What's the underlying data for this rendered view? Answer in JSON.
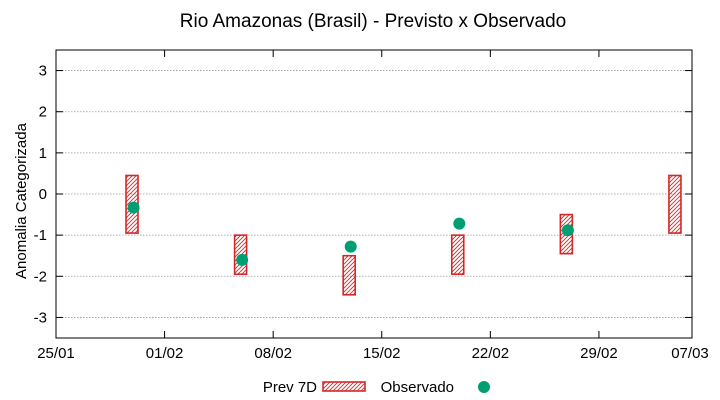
{
  "chart_data": {
    "type": "range-bar-with-points",
    "title": "Rio Amazonas (Brasil) - Previsto x Observado",
    "xlabel": "",
    "ylabel": "Anomalia Categorizada",
    "xlim": [
      0,
      41
    ],
    "x_ticks": [
      {
        "x": 0,
        "label": "25/01"
      },
      {
        "x": 7,
        "label": "01/02"
      },
      {
        "x": 14,
        "label": "08/02"
      },
      {
        "x": 21,
        "label": "15/02"
      },
      {
        "x": 28,
        "label": "22/02"
      },
      {
        "x": 35,
        "label": "29/02"
      },
      {
        "x": 42,
        "label": "07/03"
      }
    ],
    "ylim": [
      -3.5,
      3.5
    ],
    "y_ticks": [
      -3,
      -2,
      -1,
      0,
      1,
      2,
      3
    ],
    "grid": true,
    "legend_position": "bottom",
    "series": [
      {
        "name": "Prev 7D",
        "kind": "range",
        "color": "#d62728",
        "points": [
          {
            "x": 4.9,
            "low": -0.95,
            "high": 0.45
          },
          {
            "x": 11.9,
            "low": -1.95,
            "high": -1.0
          },
          {
            "x": 18.9,
            "low": -2.45,
            "high": -1.5
          },
          {
            "x": 25.9,
            "low": -1.95,
            "high": -1.0
          },
          {
            "x": 32.9,
            "low": -1.45,
            "high": -0.5
          },
          {
            "x": 39.9,
            "low": -0.95,
            "high": 0.45
          }
        ]
      },
      {
        "name": "Observado",
        "kind": "point",
        "color": "#009e73",
        "points": [
          {
            "x": 5.0,
            "y": -0.33
          },
          {
            "x": 12.0,
            "y": -1.6
          },
          {
            "x": 19.0,
            "y": -1.28
          },
          {
            "x": 26.0,
            "y": -0.72
          },
          {
            "x": 33.0,
            "y": -0.88
          }
        ]
      }
    ]
  }
}
